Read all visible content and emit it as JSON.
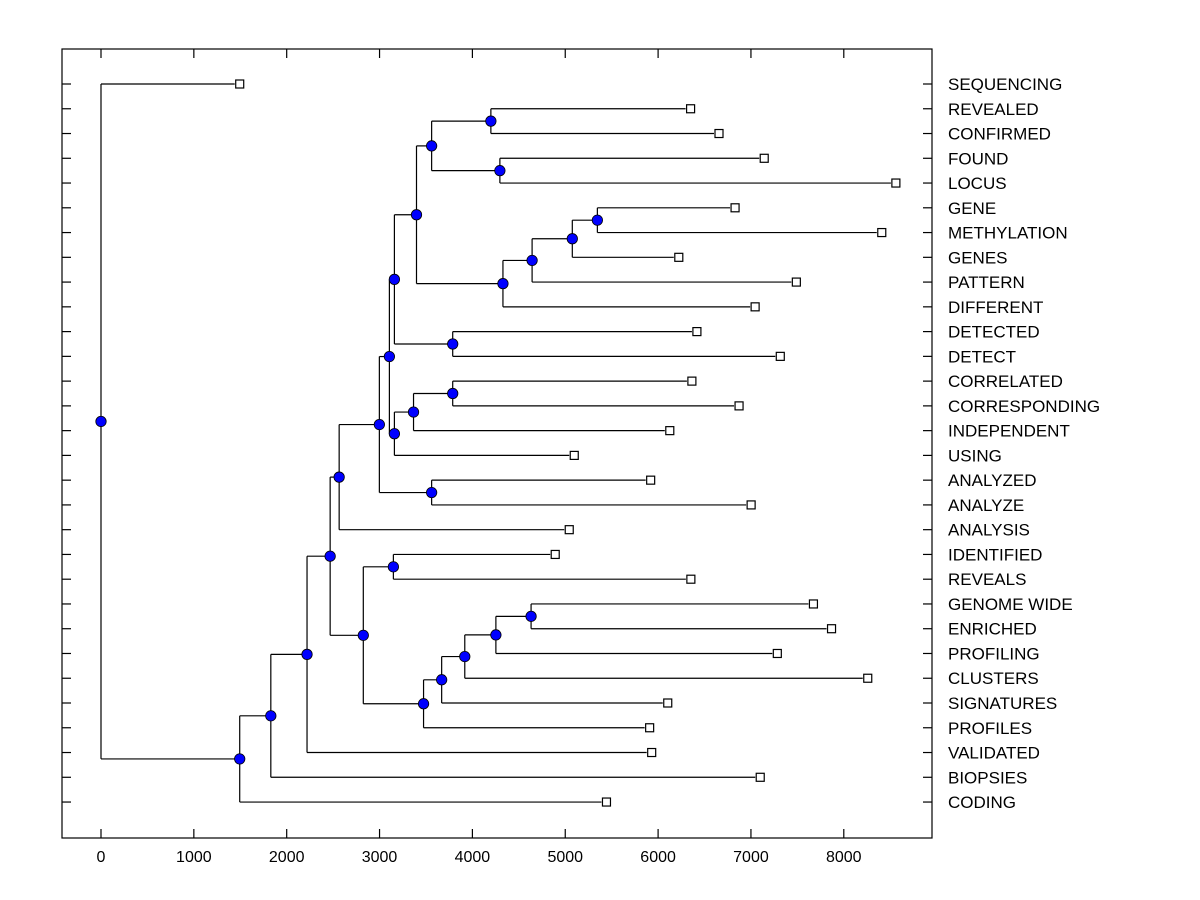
{
  "chart_data": {
    "type": "dendrogram",
    "title": "",
    "xlabel": "",
    "ylabel": "",
    "xlim": [
      -420,
      8950
    ],
    "xticks": [
      0,
      1000,
      2000,
      3000,
      4000,
      5000,
      6000,
      7000,
      8000
    ],
    "xtick_labels": [
      "0",
      "1000",
      "2000",
      "3000",
      "4000",
      "5000",
      "6000",
      "7000",
      "8000"
    ],
    "grid": false,
    "leaf_marker": "white square",
    "node_marker": "blue circle",
    "colors": {
      "node_fill": "#0000ff",
      "line": "#000000",
      "leaf_fill": "#ffffff"
    },
    "leaves": [
      {
        "label": "SEQUENCING",
        "value": 1494
      },
      {
        "label": "REVEALED",
        "value": 6350
      },
      {
        "label": "CONFIRMED",
        "value": 6656
      },
      {
        "label": "FOUND",
        "value": 7143
      },
      {
        "label": "LOCUS",
        "value": 8561
      },
      {
        "label": "GENE",
        "value": 6829
      },
      {
        "label": "METHYLATION",
        "value": 8409
      },
      {
        "label": "GENES",
        "value": 6223
      },
      {
        "label": "PATTERN",
        "value": 7489
      },
      {
        "label": "DIFFERENT",
        "value": 7045
      },
      {
        "label": "DETECTED",
        "value": 6418
      },
      {
        "label": "DETECT",
        "value": 7316
      },
      {
        "label": "CORRELATED",
        "value": 6364
      },
      {
        "label": "CORRESPONDING",
        "value": 6872
      },
      {
        "label": "INDEPENDENT",
        "value": 6126
      },
      {
        "label": "USING",
        "value": 5097
      },
      {
        "label": "ANALYZED",
        "value": 5920
      },
      {
        "label": "ANALYZE",
        "value": 7002
      },
      {
        "label": "ANALYSIS",
        "value": 5043
      },
      {
        "label": "IDENTIFIED",
        "value": 4892
      },
      {
        "label": "REVEALS",
        "value": 6353
      },
      {
        "label": "GENOME WIDE",
        "value": 7673
      },
      {
        "label": "ENRICHED",
        "value": 7868
      },
      {
        "label": "PROFILING",
        "value": 7284
      },
      {
        "label": "CLUSTERS",
        "value": 8258
      },
      {
        "label": "SIGNATURES",
        "value": 6104
      },
      {
        "label": "PROFILES",
        "value": 5909
      },
      {
        "label": "VALIDATED",
        "value": 5931
      },
      {
        "label": "BIOPSIES",
        "value": 7100
      },
      {
        "label": "CODING",
        "value": 5444
      }
    ],
    "tree": {
      "value": 0,
      "children": [
        {
          "leaf": 0
        },
        {
          "value": 1494,
          "children": [
            {
              "value": 1829,
              "children": [
                {
                  "value": 2219,
                  "children": [
                    {
                      "value": 2468,
                      "children": [
                        {
                          "value": 2565,
                          "children": [
                            {
                              "value": 2998,
                              "children": [
                                {
                                  "value": 3106,
                                  "children": [
                                    {
                                      "value": 3160,
                                      "children": [
                                        {
                                          "value": 3398,
                                          "children": [
                                            {
                                              "value": 3561,
                                              "children": [
                                                {
                                                  "value": 4199,
                                                  "children": [
                                                    {
                                                      "leaf": 1
                                                    },
                                                    {
                                                      "leaf": 2
                                                    }
                                                  ]
                                                },
                                                {
                                                  "value": 4296,
                                                  "children": [
                                                    {
                                                      "leaf": 3
                                                    },
                                                    {
                                                      "leaf": 4
                                                    }
                                                  ]
                                                }
                                              ]
                                            },
                                            {
                                              "value": 4329,
                                              "children": [
                                                {
                                                  "value": 4643,
                                                  "children": [
                                                    {
                                                      "value": 5076,
                                                      "children": [
                                                        {
                                                          "value": 5346,
                                                          "children": [
                                                            {
                                                              "leaf": 5
                                                            },
                                                            {
                                                              "leaf": 6
                                                            }
                                                          ]
                                                        },
                                                        {
                                                          "leaf": 7
                                                        }
                                                      ]
                                                    },
                                                    {
                                                      "leaf": 8
                                                    }
                                                  ]
                                                },
                                                {
                                                  "leaf": 9
                                                }
                                              ]
                                            }
                                          ]
                                        },
                                        {
                                          "value": 3788,
                                          "children": [
                                            {
                                              "leaf": 10
                                            },
                                            {
                                              "leaf": 11
                                            }
                                          ]
                                        }
                                      ]
                                    },
                                    {
                                      "value": 3160,
                                      "children": [
                                        {
                                          "value": 3366,
                                          "children": [
                                            {
                                              "value": 3788,
                                              "children": [
                                                {
                                                  "leaf": 12
                                                },
                                                {
                                                  "leaf": 13
                                                }
                                              ]
                                            },
                                            {
                                              "leaf": 14
                                            }
                                          ]
                                        },
                                        {
                                          "leaf": 15
                                        }
                                      ]
                                    }
                                  ]
                                },
                                {
                                  "value": 3561,
                                  "children": [
                                    {
                                      "leaf": 16
                                    },
                                    {
                                      "leaf": 17
                                    }
                                  ]
                                }
                              ]
                            },
                            {
                              "leaf": 18
                            }
                          ]
                        },
                        {
                          "value": 2825,
                          "children": [
                            {
                              "value": 3149,
                              "children": [
                                {
                                  "leaf": 19
                                },
                                {
                                  "leaf": 20
                                }
                              ]
                            },
                            {
                              "value": 3474,
                              "children": [
                                {
                                  "value": 3669,
                                  "children": [
                                    {
                                      "value": 3918,
                                      "children": [
                                        {
                                          "value": 4253,
                                          "children": [
                                            {
                                              "value": 4632,
                                              "children": [
                                                {
                                                  "leaf": 21
                                                },
                                                {
                                                  "leaf": 22
                                                }
                                              ]
                                            },
                                            {
                                              "leaf": 23
                                            }
                                          ]
                                        },
                                        {
                                          "leaf": 24
                                        }
                                      ]
                                    },
                                    {
                                      "leaf": 25
                                    }
                                  ]
                                },
                                {
                                  "leaf": 26
                                }
                              ]
                            }
                          ]
                        }
                      ]
                    },
                    {
                      "leaf": 27
                    }
                  ]
                },
                {
                  "leaf": 28
                }
              ]
            },
            {
              "leaf": 29
            }
          ]
        }
      ]
    }
  }
}
